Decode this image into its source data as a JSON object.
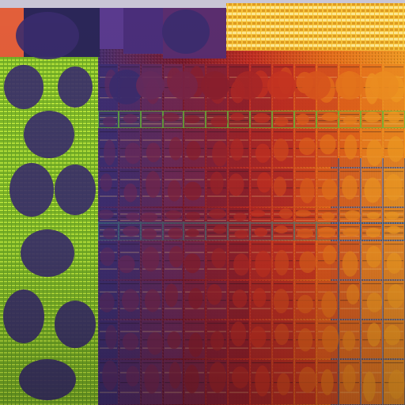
{
  "image": {
    "subject": "microprocessor-die-micrograph",
    "palette": {
      "background": "#0a0a12",
      "violet": "#3e2f72",
      "indigo": "#2b2658",
      "lime": "#8ccf2a",
      "lime_bright": "#b6e53a",
      "teal": "#3f8f86",
      "crimson": "#7a1a2c",
      "red": "#c22e22",
      "orange": "#e56a1a",
      "amber": "#f19a22",
      "gold": "#f6c33a",
      "blue_trace": "#3c6bd0",
      "silver": "#c9c6d6"
    }
  }
}
